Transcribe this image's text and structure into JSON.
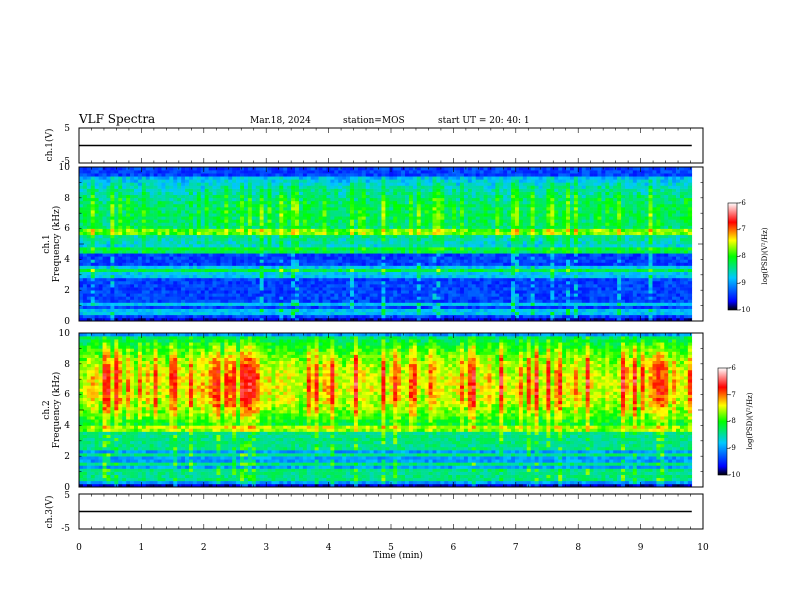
{
  "header": {
    "title": "VLF Spectra",
    "date": "Mar.18, 2024",
    "station": "station=MOS",
    "start_ut": "start UT =  20: 40: 1"
  },
  "colors": {
    "background": "#ffffff",
    "axis": "#000000",
    "colormap": [
      "#000000",
      "#0000ff",
      "#00c8ff",
      "#00ff00",
      "#ffff00",
      "#ff0000",
      "#ffffff"
    ]
  },
  "chart_data": [
    {
      "id": "ch1-waveform",
      "type": "line",
      "ylabel": "ch.1(V)",
      "ylim": [
        -5,
        5
      ],
      "yticks": [
        "5",
        "-5"
      ],
      "x": [
        0,
        9.82
      ],
      "values": [
        0,
        0
      ],
      "grid": false
    },
    {
      "id": "ch1-spectrogram",
      "type": "heatmap",
      "ylabel_lines": [
        "ch.1",
        "Frequency (kHz)"
      ],
      "ylim": [
        0,
        10
      ],
      "yticks": [
        "0",
        "2",
        "4",
        "6",
        "8",
        "10"
      ],
      "xlim": [
        0,
        10
      ],
      "data_xmax": 9.82,
      "band_kHz": [
        4.4,
        9.4
      ],
      "lines_kHz": [
        0.5,
        0.7,
        1.1,
        2.9,
        3.2,
        3.4,
        4.6,
        5.8
      ],
      "base_level": -9.3,
      "peak_level": -7.8,
      "colorbar": {
        "label": "log(PSD)(V²/Hz)",
        "ticks": [
          "-6",
          "-7",
          "-8",
          "-9",
          "-10"
        ],
        "range": [
          -10,
          -6
        ]
      }
    },
    {
      "id": "ch2-spectrogram",
      "type": "heatmap",
      "ylabel_lines": [
        "ch.2",
        "Frequency (kHz)"
      ],
      "ylim": [
        0,
        10
      ],
      "yticks": [
        "0",
        "2",
        "4",
        "6",
        "8",
        "10"
      ],
      "xlim": [
        0,
        10
      ],
      "data_xmax": 9.82,
      "band_kHz": [
        3.6,
        9.8
      ],
      "lines_kHz": [
        0.6,
        1.0,
        1.5,
        2.1,
        2.6,
        3.0,
        3.4,
        3.8
      ],
      "base_level": -8.9,
      "peak_level": -6.8,
      "colorbar": {
        "label": "log(PSD)(V²/Hz)",
        "ticks": [
          "-6",
          "-7",
          "-8",
          "-9",
          "-10"
        ],
        "range": [
          -10,
          -6
        ]
      }
    },
    {
      "id": "ch3-waveform",
      "type": "line",
      "ylabel": "ch.3(V)",
      "ylim": [
        -5,
        5
      ],
      "yticks": [
        "5",
        "-5"
      ],
      "x": [
        0,
        9.82
      ],
      "values": [
        0,
        0
      ],
      "xlabel": "Time (min)",
      "xlim": [
        0,
        10
      ],
      "xticks": [
        "0",
        "1",
        "2",
        "3",
        "4",
        "5",
        "6",
        "7",
        "8",
        "9",
        "10"
      ],
      "grid": false
    }
  ]
}
